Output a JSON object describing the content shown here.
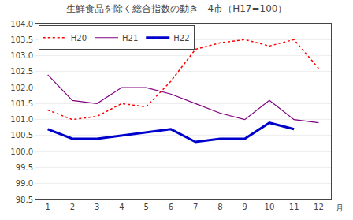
{
  "chart_data": {
    "type": "line",
    "title": "生鮮食品を除く総合指数の動き　4市（H17=100）",
    "xlabel": "月",
    "xlim": [
      0.5,
      12.5
    ],
    "xticks": [
      1,
      2,
      3,
      4,
      5,
      6,
      7,
      8,
      9,
      10,
      11,
      12
    ],
    "ylim": [
      98.5,
      104.0
    ],
    "yticks": [
      98.5,
      {
        "value": 99.0,
        "label": "99.0"
      },
      99.5,
      {
        "value": 100.0,
        "label": "100.0"
      },
      100.5,
      {
        "value": 101.0,
        "label": "101.0"
      },
      101.5,
      {
        "value": 102.0,
        "label": "102.0"
      },
      102.5,
      {
        "value": 103.0,
        "label": "103.0"
      },
      103.5,
      {
        "value": 104.0,
        "label": "104.0"
      }
    ],
    "grid": true,
    "legend": "upper left",
    "series": [
      {
        "name": "H20",
        "color": "#ff0000",
        "line_style": "dotted",
        "x": [
          1,
          2,
          3,
          4,
          5,
          6,
          7,
          8,
          9,
          10,
          11,
          12
        ],
        "values": [
          101.3,
          101.0,
          101.1,
          101.5,
          101.4,
          102.2,
          103.2,
          103.4,
          103.5,
          103.3,
          103.5,
          102.6
        ]
      },
      {
        "name": "H21",
        "color": "#800080",
        "line_style": "solid",
        "x": [
          1,
          2,
          3,
          4,
          5,
          6,
          7,
          8,
          9,
          10,
          11,
          12
        ],
        "values": [
          102.4,
          101.6,
          101.5,
          102.0,
          102.0,
          101.8,
          101.5,
          101.2,
          101.0,
          101.6,
          101.0,
          100.9
        ]
      },
      {
        "name": "H22",
        "color": "#0000cc",
        "line_style": "solid",
        "x": [
          1,
          2,
          3,
          4,
          5,
          6,
          7,
          8,
          9,
          10,
          11
        ],
        "values": [
          100.7,
          100.4,
          100.4,
          100.5,
          100.6,
          100.7,
          100.3,
          100.4,
          100.4,
          100.9,
          100.7
        ]
      }
    ]
  }
}
